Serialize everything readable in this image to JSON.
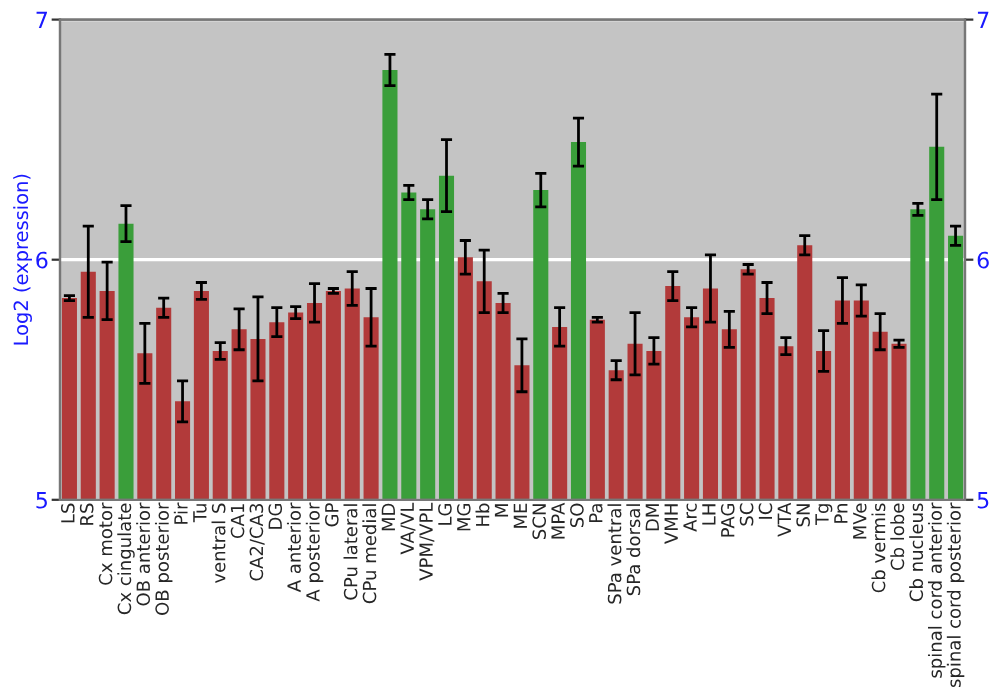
{
  "chart_data": {
    "type": "bar",
    "ylabel": "Log2 (expression)",
    "categories": [
      "LS",
      "RS",
      "Cx motor",
      "Cx cingulate",
      "OB anterior",
      "OB posterior",
      "Pir",
      "Tu",
      "ventral S",
      "CA1",
      "CA2/CA3",
      "DG",
      "A anterior",
      "A posterior",
      "GP",
      "CPu lateral",
      "CPu medial",
      "MD",
      "VA/VL",
      "VPM/VPL",
      "LG",
      "MG",
      "Hb",
      "M",
      "ME",
      "SCN",
      "MPA",
      "SO",
      "Pa",
      "SPa ventral",
      "SPa dorsal",
      "DM",
      "VMH",
      "Arc",
      "LH",
      "PAG",
      "SC",
      "IC",
      "VTA",
      "SN",
      "Tg",
      "Pn",
      "MVe",
      "Cb vermis",
      "Cb lobe",
      "Cb nucleus",
      "spinal cord anterior",
      "spinal cord posterior"
    ],
    "values": [
      5.84,
      5.95,
      5.87,
      6.15,
      5.61,
      5.8,
      5.41,
      5.87,
      5.62,
      5.71,
      5.67,
      5.74,
      5.78,
      5.82,
      5.87,
      5.88,
      5.76,
      6.79,
      6.28,
      6.21,
      6.35,
      6.01,
      5.91,
      5.82,
      5.56,
      6.29,
      5.72,
      6.49,
      5.75,
      5.54,
      5.65,
      5.62,
      5.89,
      5.76,
      5.88,
      5.71,
      5.96,
      5.84,
      5.64,
      6.06,
      5.62,
      5.83,
      5.83,
      5.7,
      5.65,
      6.21,
      6.47,
      6.1
    ],
    "errors": [
      0.01,
      0.19,
      0.12,
      0.075,
      0.125,
      0.04,
      0.085,
      0.035,
      0.035,
      0.085,
      0.175,
      0.06,
      0.025,
      0.08,
      0.01,
      0.07,
      0.12,
      0.065,
      0.03,
      0.04,
      0.15,
      0.07,
      0.13,
      0.04,
      0.11,
      0.07,
      0.08,
      0.1,
      0.01,
      0.04,
      0.13,
      0.055,
      0.06,
      0.04,
      0.14,
      0.075,
      0.02,
      0.065,
      0.035,
      0.04,
      0.085,
      0.095,
      0.065,
      0.075,
      0.015,
      0.025,
      0.22,
      0.04
    ],
    "colors": [
      "#b23a3a",
      "#b23a3a",
      "#b23a3a",
      "#3a9e3a",
      "#b23a3a",
      "#b23a3a",
      "#b23a3a",
      "#b23a3a",
      "#b23a3a",
      "#b23a3a",
      "#b23a3a",
      "#b23a3a",
      "#b23a3a",
      "#b23a3a",
      "#b23a3a",
      "#b23a3a",
      "#b23a3a",
      "#3a9e3a",
      "#3a9e3a",
      "#3a9e3a",
      "#3a9e3a",
      "#b23a3a",
      "#b23a3a",
      "#b23a3a",
      "#b23a3a",
      "#3a9e3a",
      "#b23a3a",
      "#3a9e3a",
      "#b23a3a",
      "#b23a3a",
      "#b23a3a",
      "#b23a3a",
      "#b23a3a",
      "#b23a3a",
      "#b23a3a",
      "#b23a3a",
      "#b23a3a",
      "#b23a3a",
      "#b23a3a",
      "#b23a3a",
      "#b23a3a",
      "#b23a3a",
      "#b23a3a",
      "#b23a3a",
      "#b23a3a",
      "#3a9e3a",
      "#3a9e3a",
      "#3a9e3a"
    ],
    "ylim": [
      5,
      7
    ],
    "yticks": [
      5,
      6,
      7
    ],
    "y2lim": [
      5,
      7
    ],
    "y2ticks": [
      5,
      6,
      7
    ],
    "grid": "y",
    "legend": false
  }
}
